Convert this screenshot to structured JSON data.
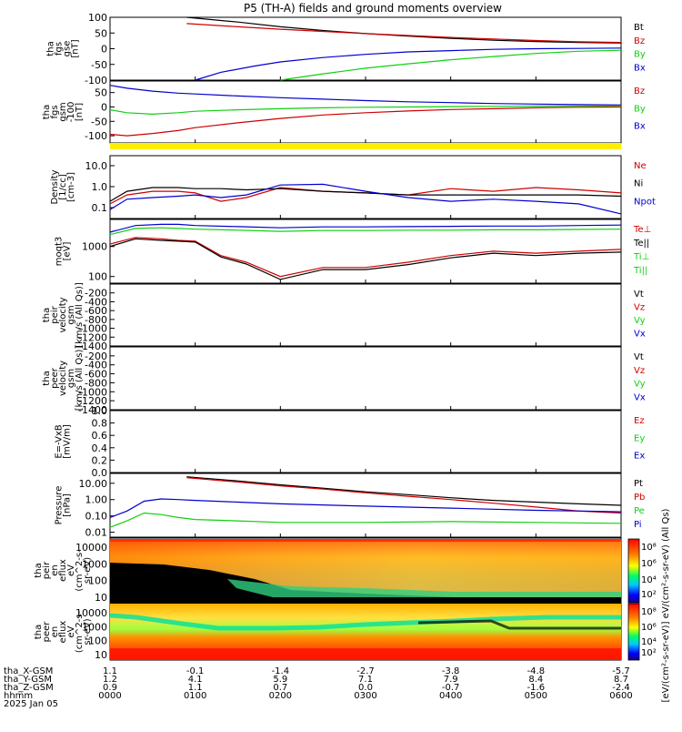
{
  "title": "P5 (TH-A) fields and ground moments overview",
  "colors": {
    "black": "#000000",
    "red": "#d00000",
    "green": "#10d010",
    "blue": "#0000d0",
    "yellow": "#ffee00"
  },
  "chart_data": [
    {
      "type": "line",
      "panel": "fgs_gse",
      "ylabel": [
        "tha",
        "fgs",
        "gse",
        "[nT]"
      ],
      "ylim": [
        -100,
        100
      ],
      "yticks": [
        "100",
        "50",
        "0",
        "-50",
        "-100"
      ],
      "legend": [
        {
          "name": "Bt",
          "color": "#000000"
        },
        {
          "name": "Bz",
          "color": "#d00000"
        },
        {
          "name": "By",
          "color": "#10d010"
        },
        {
          "name": "Bx",
          "color": "#0000d0"
        }
      ],
      "series": [
        {
          "name": "Bt",
          "color": "#000000",
          "x": [
            0.9,
            1.5,
            2.0,
            2.5,
            3.0,
            3.5,
            4.0,
            4.5,
            5.0,
            5.5,
            6.0
          ],
          "y": [
            100,
            85,
            70,
            58,
            48,
            40,
            33,
            27,
            23,
            20,
            18
          ]
        },
        {
          "name": "Bz",
          "color": "#d00000",
          "x": [
            0.9,
            1.5,
            2.0,
            2.5,
            3.0,
            3.5,
            4.0,
            4.5,
            5.0,
            5.5,
            6.0
          ],
          "y": [
            80,
            70,
            62,
            55,
            48,
            42,
            36,
            31,
            26,
            22,
            20
          ]
        },
        {
          "name": "By",
          "color": "#10d010",
          "x": [
            2.0,
            2.5,
            3.0,
            3.5,
            4.0,
            4.5,
            5.0,
            5.5,
            6.0
          ],
          "y": [
            -100,
            -80,
            -62,
            -48,
            -35,
            -25,
            -15,
            -8,
            -5
          ]
        },
        {
          "name": "Bx",
          "color": "#0000d0",
          "x": [
            1.0,
            1.3,
            1.7,
            2.0,
            2.5,
            3.0,
            3.5,
            4.0,
            4.5,
            5.0,
            5.5,
            6.0
          ],
          "y": [
            -100,
            -75,
            -55,
            -42,
            -28,
            -18,
            -10,
            -6,
            -2,
            0,
            1,
            2
          ]
        }
      ]
    },
    {
      "type": "line",
      "panel": "fgs_gsm",
      "ylabel": [
        "tha",
        "fgs",
        "gsm",
        "-100",
        "[nT]"
      ],
      "ylim": [
        -125,
        90
      ],
      "yticks": [
        "50",
        "0",
        "-50",
        "-100"
      ],
      "legend": [
        {
          "name": "Bz",
          "color": "#d00000"
        },
        {
          "name": "By",
          "color": "#10d010"
        },
        {
          "name": "Bx",
          "color": "#0000d0"
        }
      ],
      "series": [
        {
          "name": "Bz",
          "color": "#d00000",
          "x": [
            0,
            0.2,
            0.5,
            0.8,
            1.0,
            1.5,
            2.0,
            2.5,
            3.0,
            3.5,
            4.0,
            4.5,
            5.0,
            5.5,
            6.0
          ],
          "y": [
            -95,
            -100,
            -92,
            -82,
            -72,
            -55,
            -40,
            -28,
            -20,
            -14,
            -9,
            -6,
            -3,
            -1,
            0
          ]
        },
        {
          "name": "By",
          "color": "#10d010",
          "x": [
            0,
            0.2,
            0.5,
            0.8,
            1.0,
            1.5,
            2.0,
            2.5,
            3.0,
            3.5,
            4.0,
            4.5,
            5.0,
            5.5,
            6.0
          ],
          "y": [
            -10,
            -20,
            -25,
            -20,
            -15,
            -10,
            -6,
            -3,
            -1,
            0,
            1,
            2,
            3,
            3,
            4
          ]
        },
        {
          "name": "Bx",
          "color": "#0000d0",
          "x": [
            0,
            0.2,
            0.5,
            0.8,
            1.0,
            1.5,
            2.0,
            2.5,
            3.0,
            3.5,
            4.0,
            4.5,
            5.0,
            5.5,
            6.0
          ],
          "y": [
            75,
            65,
            55,
            48,
            45,
            38,
            32,
            27,
            22,
            18,
            15,
            12,
            10,
            8,
            7
          ]
        }
      ]
    },
    {
      "type": "line",
      "panel": "density",
      "ylabel": [
        "Density",
        "[1/cc]",
        "[cm-3]"
      ],
      "ylim": [
        0.03,
        30
      ],
      "scale": "log",
      "yticks": [
        "10.0",
        "1.0",
        "0.1"
      ],
      "legend": [
        {
          "name": "Ne",
          "color": "#d00000"
        },
        {
          "name": "Ni",
          "color": "#000000"
        },
        {
          "name": "Npot",
          "color": "#0000d0"
        }
      ],
      "series": [
        {
          "name": "Ne",
          "color": "#d00000",
          "x": [
            0,
            0.2,
            0.5,
            0.8,
            1.0,
            1.3,
            1.6,
            2.0,
            2.5,
            3.0,
            3.5,
            4.0,
            4.5,
            5.0,
            5.5,
            6.0
          ],
          "y": [
            0.15,
            0.4,
            0.6,
            0.6,
            0.5,
            0.2,
            0.3,
            0.9,
            0.6,
            0.5,
            0.4,
            0.8,
            0.6,
            0.9,
            0.7,
            0.5
          ]
        },
        {
          "name": "Ni",
          "color": "#000000",
          "x": [
            0,
            0.2,
            0.5,
            0.8,
            1.0,
            1.3,
            1.6,
            2.0,
            2.5,
            3.0,
            3.5,
            4.0,
            4.5,
            5.0,
            5.5,
            6.0
          ],
          "y": [
            0.2,
            0.6,
            0.9,
            0.9,
            0.8,
            0.8,
            0.7,
            0.8,
            0.6,
            0.5,
            0.4,
            0.4,
            0.4,
            0.4,
            0.4,
            0.35
          ]
        },
        {
          "name": "Npot",
          "color": "#0000d0",
          "x": [
            0,
            0.2,
            0.5,
            0.8,
            1.0,
            1.3,
            1.6,
            2.0,
            2.5,
            3.0,
            3.5,
            4.0,
            4.5,
            5.0,
            5.5,
            6.0
          ],
          "y": [
            0.08,
            0.25,
            0.3,
            0.35,
            0.4,
            0.3,
            0.4,
            1.2,
            1.3,
            0.6,
            0.3,
            0.2,
            0.25,
            0.2,
            0.15,
            0.05
          ]
        }
      ]
    },
    {
      "type": "line",
      "panel": "temperature",
      "ylabel": [
        "moqt3",
        "[eV]"
      ],
      "ylim": [
        60,
        8000
      ],
      "scale": "log",
      "yticks": [
        "1000",
        "100"
      ],
      "legend": [
        {
          "name": "Te⊥",
          "color": "#d00000"
        },
        {
          "name": "Te||",
          "color": "#000000"
        },
        {
          "name": "Ti⊥",
          "color": "#10d010"
        },
        {
          "name": "Ti||",
          "color": "#10d010"
        }
      ],
      "series": [
        {
          "name": "Te⊥",
          "color": "#d00000",
          "x": [
            0,
            0.3,
            0.6,
            0.8,
            1.0,
            1.3,
            1.6,
            2.0,
            2.5,
            3.0,
            3.5,
            4.0,
            4.5,
            5.0,
            5.5,
            6.0
          ],
          "y": [
            1200,
            2000,
            1800,
            1600,
            1500,
            500,
            300,
            100,
            200,
            200,
            300,
            500,
            700,
            600,
            700,
            800
          ]
        },
        {
          "name": "Te||",
          "color": "#000000",
          "x": [
            0,
            0.3,
            0.6,
            0.8,
            1.0,
            1.3,
            1.6,
            2.0,
            2.5,
            3.0,
            3.5,
            4.0,
            4.5,
            5.0,
            5.5,
            6.0
          ],
          "y": [
            1000,
            1800,
            1600,
            1500,
            1400,
            450,
            260,
            80,
            170,
            170,
            250,
            420,
            600,
            500,
            600,
            650
          ]
        },
        {
          "name": "Ti⊥",
          "color": "#0000d0",
          "x": [
            0,
            0.3,
            0.6,
            0.8,
            1.0,
            1.5,
            2.0,
            2.5,
            3.0,
            3.5,
            4.0,
            4.5,
            5.0,
            5.5,
            6.0
          ],
          "y": [
            3000,
            5000,
            5500,
            5500,
            5000,
            4600,
            4200,
            4500,
            4500,
            4600,
            4700,
            4800,
            4800,
            5000,
            5200
          ]
        },
        {
          "name": "Ti||",
          "color": "#10d010",
          "x": [
            0,
            0.3,
            0.6,
            0.8,
            1.0,
            1.5,
            2.0,
            2.5,
            3.0,
            3.5,
            4.0,
            4.5,
            5.0,
            5.5,
            6.0
          ],
          "y": [
            2500,
            4000,
            4200,
            4000,
            3800,
            3500,
            3200,
            3400,
            3400,
            3500,
            3500,
            3600,
            3600,
            3700,
            3800
          ]
        }
      ]
    },
    {
      "type": "line",
      "panel": "peir_velocity",
      "ylabel": [
        "tha",
        "peir",
        "velocity",
        "gsm",
        "[km/s (All Qs)]"
      ],
      "ylim": [
        -1400,
        0
      ],
      "yticks": [
        "-200",
        "-400",
        "-600",
        "-800",
        "-1000",
        "-1200",
        "-1400"
      ],
      "legend": [
        {
          "name": "Vt",
          "color": "#000000"
        },
        {
          "name": "Vz",
          "color": "#d00000"
        },
        {
          "name": "Vy",
          "color": "#10d010"
        },
        {
          "name": "Vx",
          "color": "#0000d0"
        }
      ],
      "series": []
    },
    {
      "type": "line",
      "panel": "peer_velocity",
      "ylabel": [
        "tha",
        "peer",
        "velocity",
        "gsm",
        "[km/s (All Qs)]"
      ],
      "ylim": [
        -1400,
        0
      ],
      "yticks": [
        "-200",
        "-400",
        "-600",
        "-800",
        "-1000",
        "-1200",
        "-1400"
      ],
      "legend": [
        {
          "name": "Vt",
          "color": "#000000"
        },
        {
          "name": "Vz",
          "color": "#d00000"
        },
        {
          "name": "Vy",
          "color": "#10d010"
        },
        {
          "name": "Vx",
          "color": "#0000d0"
        }
      ],
      "series": []
    },
    {
      "type": "line",
      "panel": "efield",
      "ylabel": [
        "E=-VxB",
        "[mV/m]"
      ],
      "ylim": [
        0,
        1
      ],
      "yticks": [
        "1.0",
        "0.8",
        "0.6",
        "0.4",
        "0.2",
        "0.0"
      ],
      "legend": [
        {
          "name": "Ez",
          "color": "#d00000"
        },
        {
          "name": "Ey",
          "color": "#10d010"
        },
        {
          "name": "Ex",
          "color": "#0000d0"
        }
      ],
      "series": []
    },
    {
      "type": "line",
      "panel": "pressure",
      "ylabel": [
        "Pressure",
        "[nPa]"
      ],
      "ylim": [
        0.005,
        40
      ],
      "scale": "log",
      "yticks": [
        "10.00",
        "1.00",
        "0.10",
        "0.01"
      ],
      "legend": [
        {
          "name": "Pt",
          "color": "#000000"
        },
        {
          "name": "Pb",
          "color": "#d00000"
        },
        {
          "name": "Pe",
          "color": "#10d010"
        },
        {
          "name": "Pi",
          "color": "#0000d0"
        }
      ],
      "series": [
        {
          "name": "Pt",
          "color": "#000000",
          "x": [
            0.9,
            1.5,
            2.0,
            2.5,
            3.0,
            3.5,
            4.0,
            4.5,
            5.0,
            5.5,
            6.0
          ],
          "y": [
            25,
            14,
            8,
            5,
            3,
            2,
            1.3,
            0.9,
            0.7,
            0.55,
            0.45
          ]
        },
        {
          "name": "Pb",
          "color": "#d00000",
          "x": [
            0.9,
            1.5,
            2.0,
            2.5,
            3.0,
            3.5,
            4.0,
            4.5,
            5.0,
            5.5,
            6.0
          ],
          "y": [
            22,
            12,
            7,
            4.4,
            2.6,
            1.6,
            1.0,
            0.6,
            0.35,
            0.2,
            0.15
          ]
        },
        {
          "name": "Pe",
          "color": "#10d010",
          "x": [
            0,
            0.2,
            0.4,
            0.6,
            0.8,
            1.0,
            1.5,
            2.0,
            3.0,
            4.0,
            5.0,
            6.0
          ],
          "y": [
            0.02,
            0.05,
            0.15,
            0.12,
            0.08,
            0.06,
            0.05,
            0.04,
            0.04,
            0.045,
            0.04,
            0.035
          ]
        },
        {
          "name": "Pi",
          "color": "#0000d0",
          "x": [
            0,
            0.2,
            0.4,
            0.6,
            0.8,
            1.0,
            1.5,
            2.0,
            3.0,
            4.0,
            5.0,
            6.0
          ],
          "y": [
            0.08,
            0.2,
            0.8,
            1.1,
            1.0,
            0.9,
            0.7,
            0.55,
            0.4,
            0.3,
            0.22,
            0.18
          ]
        }
      ]
    },
    {
      "type": "heatmap",
      "panel": "peir_en_eflux",
      "ylabel": [
        "tha",
        "peir",
        "en",
        "eflux",
        "eV",
        "(cm^2-s-",
        "sr-eV)"
      ],
      "yticks": [
        "10000",
        "1000",
        "100",
        "10"
      ],
      "scale": "log",
      "ylim": [
        5,
        30000
      ]
    },
    {
      "type": "heatmap",
      "panel": "peer_en_eflux",
      "ylabel": [
        "tha",
        "peer",
        "en",
        "eflux",
        "eV",
        "(cm^2-s-",
        "sr-eV)"
      ],
      "yticks": [
        "10000",
        "1000",
        "100",
        "10"
      ],
      "scale": "log",
      "ylim": [
        5,
        30000
      ]
    }
  ],
  "colorbar": {
    "ticks": [
      "10⁸",
      "10⁶",
      "10⁴",
      "10²",
      "10⁸",
      "10⁶",
      "10⁴",
      "10²"
    ],
    "label": "[eV/(cm²-s-sr-eV)]   eV/(cm²-s-sr-eV)   (All Qs)"
  },
  "orbit": {
    "rows": [
      {
        "label": "tha_X-GSM",
        "values": [
          "1.1",
          "-0.1",
          "-1.4",
          "-2.7",
          "-3.8",
          "-4.8",
          "-5.7"
        ]
      },
      {
        "label": "tha_Y-GSM",
        "values": [
          "1.2",
          "4.1",
          "5.9",
          "7.1",
          "7.9",
          "8.4",
          "8.7"
        ]
      },
      {
        "label": "tha_Z-GSM",
        "values": [
          "0.9",
          "1.1",
          "0.7",
          "0.0",
          "-0.7",
          "-1.6",
          "-2.4"
        ]
      },
      {
        "label": "hhmm",
        "values": [
          "0000",
          "0100",
          "0200",
          "0300",
          "0400",
          "0500",
          "0600"
        ]
      }
    ],
    "date": "2025 Jan 05"
  }
}
